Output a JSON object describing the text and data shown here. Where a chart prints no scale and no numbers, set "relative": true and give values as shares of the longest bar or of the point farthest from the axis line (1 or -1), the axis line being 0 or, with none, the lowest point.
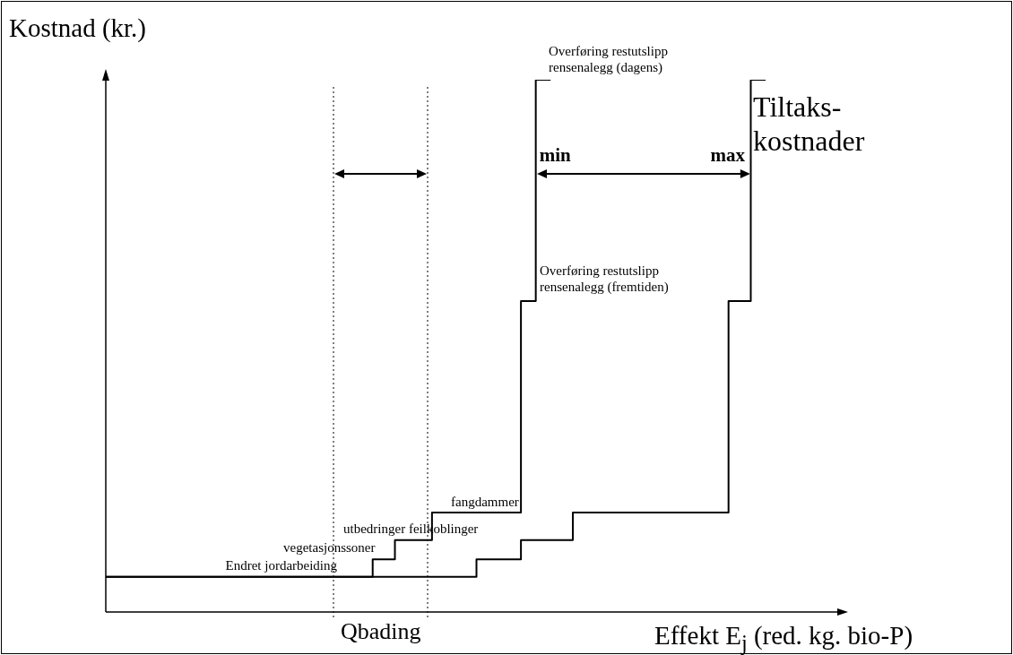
{
  "chart_data": {
    "type": "step",
    "relative": true,
    "ylabel": "Kostnad (kr.)",
    "xlabel": "Effekt E$_{j}$ (red. kg. bio-P)",
    "legend": false,
    "marker": "none",
    "line_style": "solid",
    "categories": [
      null,
      null,
      null,
      null,
      null,
      null,
      null,
      null,
      null,
      null,
      null,
      null,
      null,
      null,
      null,
      null,
      null,
      null,
      null,
      null,
      null,
      null,
      null,
      null,
      null,
      null,
      null,
      null,
      null,
      null,
      null,
      null,
      null,
      null,
      null,
      null,
      null,
      null,
      null,
      null,
      null,
      null,
      null,
      null,
      null,
      null,
      null,
      null,
      null,
      null,
      null,
      null,
      null,
      null,
      null,
      null,
      null,
      null,
      null,
      null,
      null,
      null,
      null,
      null,
      null,
      null,
      null,
      null,
      null,
      null,
      null,
      null,
      null,
      null,
      null,
      null,
      null,
      null,
      null,
      null,
      null,
      null,
      null,
      null,
      null,
      null,
      null,
      null,
      null,
      null,
      null,
      null,
      null,
      null,
      null,
      null,
      null,
      null,
      null,
      null,
      null
    ],
    "series": [
      {
        "name": "min",
        "color": "#000000",
        "values": [
          0.066,
          0.066,
          0.066,
          0.066,
          0.066,
          0.066,
          0.066,
          0.066,
          0.066,
          0.066,
          0.066,
          0.066,
          0.066,
          0.066,
          0.066,
          0.066,
          0.066,
          0.066,
          0.066,
          0.066,
          0.066,
          0.066,
          0.066,
          0.066,
          0.066,
          0.066,
          0.066,
          0.066,
          0.066,
          0.066,
          0.066,
          0.066,
          0.066,
          0.066,
          0.066,
          0.066,
          0.099,
          0.099,
          0.099,
          0.135,
          0.135,
          0.135,
          0.135,
          0.135,
          0.187,
          0.187,
          0.187,
          0.187,
          0.187,
          0.187,
          0.187,
          0.187,
          0.187,
          0.187,
          0.187,
          0.187,
          0.584,
          0.584,
          1,
          1,
          1,
          null,
          null,
          null,
          null,
          null,
          null,
          null,
          null,
          null,
          null,
          null,
          null,
          null,
          null,
          null,
          null,
          null,
          null,
          null,
          null,
          null,
          null,
          null,
          null,
          null,
          null,
          null,
          null,
          null,
          null,
          null,
          null,
          null,
          null,
          null,
          null,
          null,
          null,
          null,
          null
        ]
      },
      {
        "name": "max",
        "color": "#000000",
        "values": [
          0.066,
          0.066,
          0.066,
          0.066,
          0.066,
          0.066,
          0.066,
          0.066,
          0.066,
          0.066,
          0.066,
          0.066,
          0.066,
          0.066,
          0.066,
          0.066,
          0.066,
          0.066,
          0.066,
          0.066,
          0.066,
          0.066,
          0.066,
          0.066,
          0.066,
          0.066,
          0.066,
          0.066,
          0.066,
          0.066,
          0.066,
          0.066,
          0.066,
          0.066,
          0.066,
          0.066,
          0.066,
          0.066,
          0.066,
          0.066,
          0.066,
          0.066,
          0.066,
          0.066,
          0.066,
          0.066,
          0.066,
          0.066,
          0.066,
          0.066,
          0.099,
          0.099,
          0.099,
          0.099,
          0.099,
          0.099,
          0.135,
          0.135,
          0.135,
          0.135,
          0.135,
          0.135,
          0.135,
          0.187,
          0.187,
          0.187,
          0.187,
          0.187,
          0.187,
          0.187,
          0.187,
          0.187,
          0.187,
          0.187,
          0.187,
          0.187,
          0.187,
          0.187,
          0.187,
          0.187,
          0.187,
          0.187,
          0.187,
          0.187,
          0.584,
          0.584,
          0.584,
          1,
          1,
          1,
          null,
          null,
          null,
          null,
          null,
          null,
          null,
          null,
          null,
          null,
          null
        ]
      }
    ],
    "annotations": [
      "Endret jordarbeiding",
      "vegetasjonssoner",
      "utbedringer feilkoblinger",
      "fangdammer",
      "Overføring restutslipp\nrensenalegg (fremtiden)",
      "Overføring restutslipp\nrensenalegg (dagens)",
      "Qbading",
      "Tiltaks-\nkostnader"
    ]
  }
}
